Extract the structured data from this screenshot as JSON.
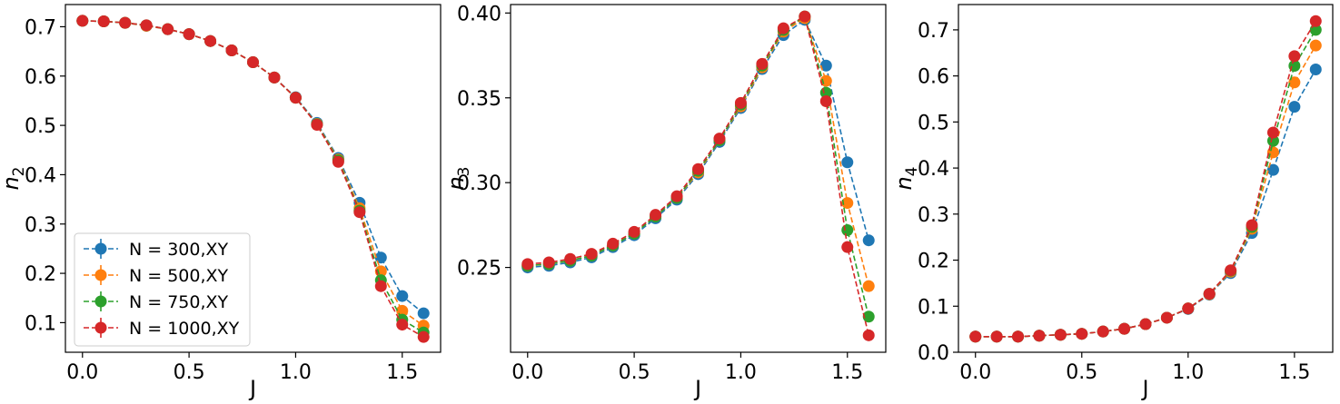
{
  "colors": [
    "#1f77b4",
    "#ff7f0e",
    "#2ca02c",
    "#d62728"
  ],
  "chart_data": [
    {
      "type": "line",
      "xlabel": "J",
      "ylabel_base": "n",
      "ylabel_sub": "2",
      "xlim": [
        -0.08,
        1.68
      ],
      "ylim": [
        0.04,
        0.745
      ],
      "xticks": [
        "0.0",
        "0.5",
        "1.0",
        "1.5"
      ],
      "xtick_values": [
        0.0,
        0.5,
        1.0,
        1.5
      ],
      "yticks": [
        "0.1",
        "0.2",
        "0.3",
        "0.4",
        "0.5",
        "0.6",
        "0.7"
      ],
      "ytick_values": [
        0.1,
        0.2,
        0.3,
        0.4,
        0.5,
        0.6,
        0.7
      ],
      "legend_position": "lower-left",
      "series": [
        {
          "name": "N = 300,XY",
          "x": [
            0.0,
            0.1,
            0.2,
            0.3,
            0.4,
            0.5,
            0.6,
            0.7,
            0.8,
            0.9,
            1.0,
            1.1,
            1.2,
            1.3,
            1.4,
            1.5,
            1.6
          ],
          "values": [
            0.712,
            0.711,
            0.708,
            0.702,
            0.695,
            0.685,
            0.671,
            0.652,
            0.628,
            0.597,
            0.557,
            0.505,
            0.434,
            0.343,
            0.232,
            0.154,
            0.119
          ]
        },
        {
          "name": "N = 500,XY",
          "x": [
            0.0,
            0.1,
            0.2,
            0.3,
            0.4,
            0.5,
            0.6,
            0.7,
            0.8,
            0.9,
            1.0,
            1.1,
            1.2,
            1.3,
            1.4,
            1.5,
            1.6
          ],
          "values": [
            0.712,
            0.711,
            0.708,
            0.702,
            0.695,
            0.685,
            0.671,
            0.652,
            0.628,
            0.597,
            0.556,
            0.503,
            0.431,
            0.332,
            0.204,
            0.124,
            0.094
          ]
        },
        {
          "name": "N = 750,XY",
          "x": [
            0.0,
            0.1,
            0.2,
            0.3,
            0.4,
            0.5,
            0.6,
            0.7,
            0.8,
            0.9,
            1.0,
            1.1,
            1.2,
            1.3,
            1.4,
            1.5,
            1.6
          ],
          "values": [
            0.712,
            0.711,
            0.708,
            0.703,
            0.695,
            0.685,
            0.671,
            0.652,
            0.628,
            0.597,
            0.556,
            0.502,
            0.429,
            0.327,
            0.186,
            0.106,
            0.08
          ]
        },
        {
          "name": "N = 1000,XY",
          "x": [
            0.0,
            0.1,
            0.2,
            0.3,
            0.4,
            0.5,
            0.6,
            0.7,
            0.8,
            0.9,
            1.0,
            1.1,
            1.2,
            1.3,
            1.4,
            1.5,
            1.6
          ],
          "values": [
            0.712,
            0.711,
            0.708,
            0.703,
            0.695,
            0.685,
            0.671,
            0.652,
            0.628,
            0.597,
            0.556,
            0.501,
            0.426,
            0.324,
            0.174,
            0.096,
            0.071
          ]
        }
      ]
    },
    {
      "type": "line",
      "xlabel": "J",
      "ylabel_base": "n",
      "ylabel_sub": "3",
      "xlim": [
        -0.08,
        1.68
      ],
      "ylim": [
        0.2,
        0.405
      ],
      "xticks": [
        "0.0",
        "0.5",
        "1.0",
        "1.5"
      ],
      "xtick_values": [
        0.0,
        0.5,
        1.0,
        1.5
      ],
      "yticks": [
        "0.25",
        "0.30",
        "0.35",
        "0.40"
      ],
      "ytick_values": [
        0.25,
        0.3,
        0.35,
        0.4
      ],
      "series": [
        {
          "name": "N = 300,XY",
          "x": [
            0.0,
            0.1,
            0.2,
            0.3,
            0.4,
            0.5,
            0.6,
            0.7,
            0.8,
            0.9,
            1.0,
            1.1,
            1.2,
            1.3,
            1.4,
            1.5,
            1.6
          ],
          "values": [
            0.25,
            0.251,
            0.253,
            0.256,
            0.262,
            0.269,
            0.279,
            0.29,
            0.305,
            0.324,
            0.344,
            0.367,
            0.387,
            0.396,
            0.369,
            0.312,
            0.266
          ]
        },
        {
          "name": "N = 500,XY",
          "x": [
            0.0,
            0.1,
            0.2,
            0.3,
            0.4,
            0.5,
            0.6,
            0.7,
            0.8,
            0.9,
            1.0,
            1.1,
            1.2,
            1.3,
            1.4,
            1.5,
            1.6
          ],
          "values": [
            0.251,
            0.252,
            0.254,
            0.257,
            0.263,
            0.27,
            0.28,
            0.291,
            0.306,
            0.325,
            0.345,
            0.368,
            0.389,
            0.397,
            0.36,
            0.288,
            0.239
          ]
        },
        {
          "name": "N = 750,XY",
          "x": [
            0.0,
            0.1,
            0.2,
            0.3,
            0.4,
            0.5,
            0.6,
            0.7,
            0.8,
            0.9,
            1.0,
            1.1,
            1.2,
            1.3,
            1.4,
            1.5,
            1.6
          ],
          "values": [
            0.251,
            0.252,
            0.254,
            0.257,
            0.263,
            0.27,
            0.28,
            0.291,
            0.307,
            0.325,
            0.346,
            0.369,
            0.39,
            0.398,
            0.353,
            0.272,
            0.221
          ]
        },
        {
          "name": "N = 1000,XY",
          "x": [
            0.0,
            0.1,
            0.2,
            0.3,
            0.4,
            0.5,
            0.6,
            0.7,
            0.8,
            0.9,
            1.0,
            1.1,
            1.2,
            1.3,
            1.4,
            1.5,
            1.6
          ],
          "values": [
            0.252,
            0.253,
            0.255,
            0.258,
            0.264,
            0.271,
            0.281,
            0.292,
            0.308,
            0.326,
            0.347,
            0.37,
            0.391,
            0.398,
            0.348,
            0.262,
            0.21
          ]
        }
      ]
    },
    {
      "type": "line",
      "xlabel": "J",
      "ylabel_base": "n",
      "ylabel_sub": "4",
      "xlim": [
        -0.08,
        1.68
      ],
      "ylim": [
        0.0,
        0.755
      ],
      "xticks": [
        "0.0",
        "0.5",
        "1.0",
        "1.5"
      ],
      "xtick_values": [
        0.0,
        0.5,
        1.0,
        1.5
      ],
      "yticks": [
        "0.0",
        "0.1",
        "0.2",
        "0.3",
        "0.4",
        "0.5",
        "0.6",
        "0.7"
      ],
      "ytick_values": [
        0.0,
        0.1,
        0.2,
        0.3,
        0.4,
        0.5,
        0.6,
        0.7
      ],
      "series": [
        {
          "name": "N = 300,XY",
          "x": [
            0.0,
            0.1,
            0.2,
            0.3,
            0.4,
            0.5,
            0.6,
            0.7,
            0.8,
            0.9,
            1.0,
            1.1,
            1.2,
            1.3,
            1.4,
            1.5,
            1.6
          ],
          "values": [
            0.034,
            0.034,
            0.034,
            0.036,
            0.038,
            0.04,
            0.045,
            0.051,
            0.061,
            0.075,
            0.094,
            0.125,
            0.172,
            0.259,
            0.396,
            0.533,
            0.614
          ]
        },
        {
          "name": "N = 500,XY",
          "x": [
            0.0,
            0.1,
            0.2,
            0.3,
            0.4,
            0.5,
            0.6,
            0.7,
            0.8,
            0.9,
            1.0,
            1.1,
            1.2,
            1.3,
            1.4,
            1.5,
            1.6
          ],
          "values": [
            0.034,
            0.034,
            0.034,
            0.036,
            0.038,
            0.04,
            0.045,
            0.051,
            0.061,
            0.075,
            0.095,
            0.126,
            0.175,
            0.268,
            0.434,
            0.586,
            0.666
          ]
        },
        {
          "name": "N = 750,XY",
          "x": [
            0.0,
            0.1,
            0.2,
            0.3,
            0.4,
            0.5,
            0.6,
            0.7,
            0.8,
            0.9,
            1.0,
            1.1,
            1.2,
            1.3,
            1.4,
            1.5,
            1.6
          ],
          "values": [
            0.034,
            0.034,
            0.034,
            0.036,
            0.038,
            0.04,
            0.045,
            0.051,
            0.061,
            0.075,
            0.095,
            0.127,
            0.177,
            0.272,
            0.459,
            0.622,
            0.7
          ]
        },
        {
          "name": "N = 1000,XY",
          "x": [
            0.0,
            0.1,
            0.2,
            0.3,
            0.4,
            0.5,
            0.6,
            0.7,
            0.8,
            0.9,
            1.0,
            1.1,
            1.2,
            1.3,
            1.4,
            1.5,
            1.6
          ],
          "values": [
            0.034,
            0.034,
            0.034,
            0.036,
            0.038,
            0.04,
            0.045,
            0.051,
            0.061,
            0.075,
            0.095,
            0.127,
            0.178,
            0.276,
            0.477,
            0.643,
            0.719
          ]
        }
      ]
    }
  ]
}
